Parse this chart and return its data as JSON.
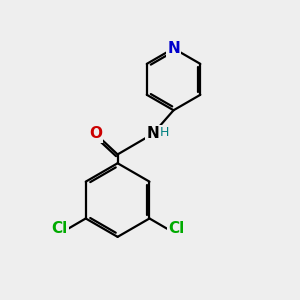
{
  "background_color": "#eeeeee",
  "bond_color": "#000000",
  "bond_width": 1.6,
  "atom_colors": {
    "N_pyridine": "#0000cc",
    "O": "#cc0000",
    "N_amide": "#000000",
    "H": "#008080",
    "Cl": "#00aa00"
  },
  "font_size_atoms": 11,
  "font_size_H": 9,
  "figsize": [
    3.0,
    3.0
  ],
  "dpi": 100
}
